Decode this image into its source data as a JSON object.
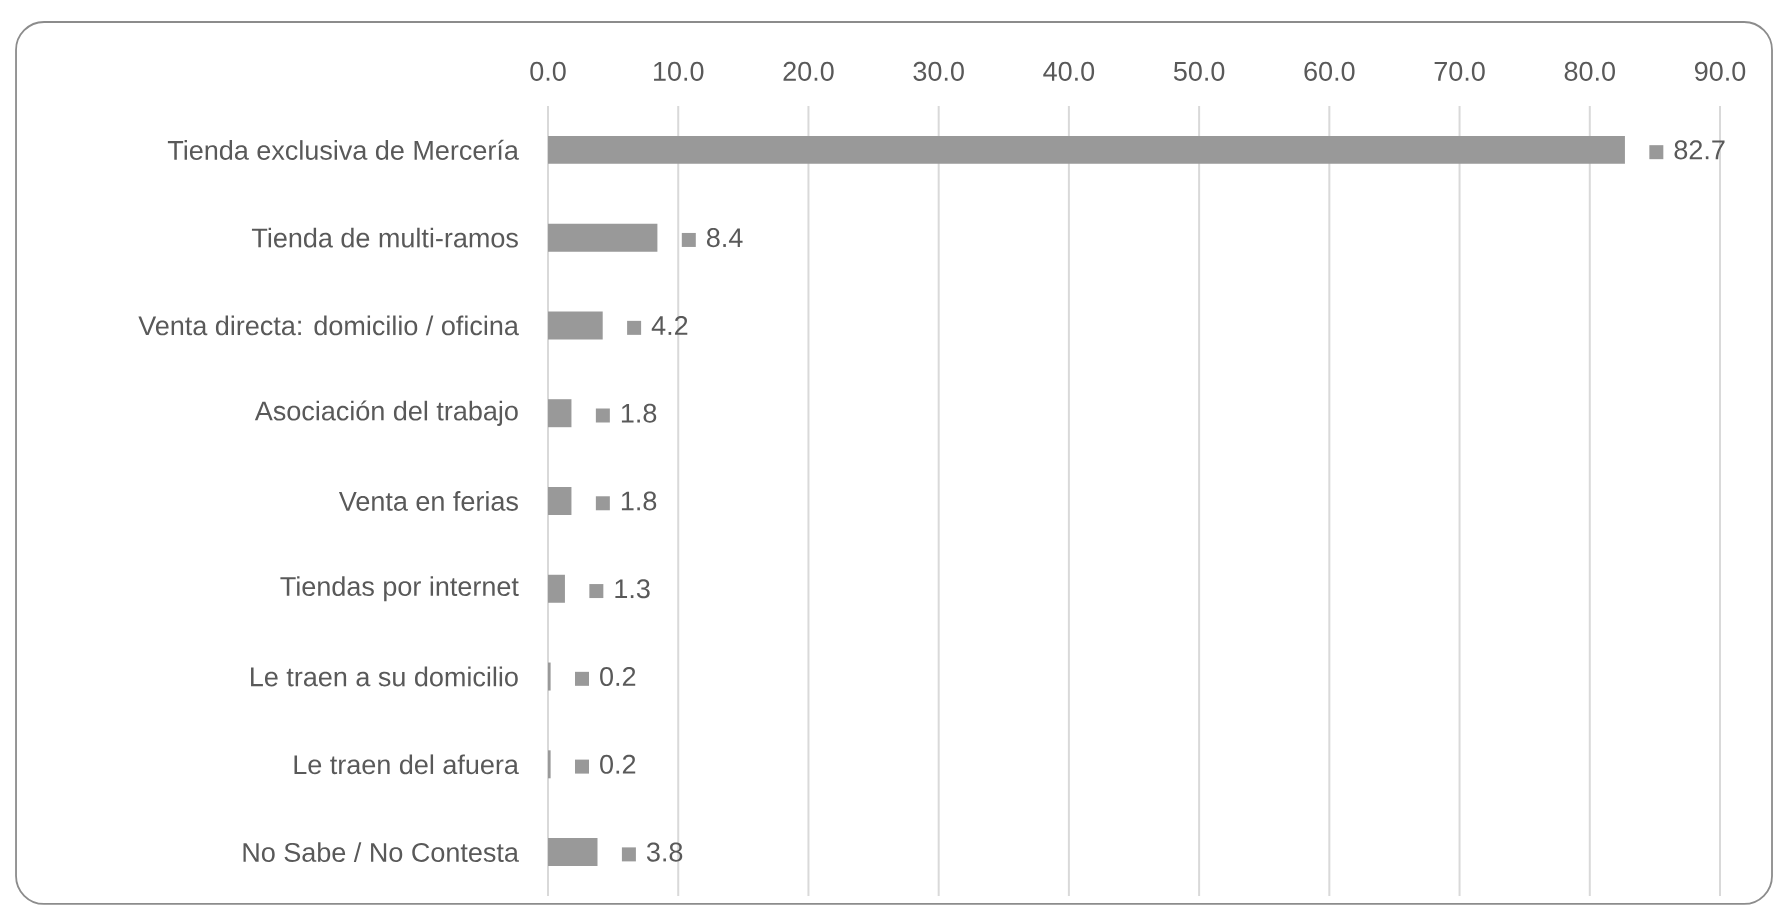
{
  "chart_data": {
    "type": "bar",
    "orientation": "horizontal",
    "categories": [
      "Tienda exclusiva de Mercería",
      "Tienda de multi-ramos",
      "Venta directa: domicilio / oficina",
      "Asociación del trabajo",
      "Venta en ferias",
      "Tiendas por internet",
      "Le traen a su domicilio",
      "Le traen del afuera",
      "No Sabe / No Contesta"
    ],
    "values": [
      82.7,
      8.4,
      4.2,
      1.8,
      1.8,
      1.3,
      0.2,
      0.2,
      3.8
    ],
    "color": "#999999",
    "xlim": [
      0,
      90
    ],
    "xticks": [
      {
        "value": 0,
        "label": "0.0"
      },
      {
        "value": 10,
        "label": "10.0"
      },
      {
        "value": 20,
        "label": "20.0"
      },
      {
        "value": 30,
        "label": "30.0"
      },
      {
        "value": 40,
        "label": "40.0"
      },
      {
        "value": 50,
        "label": "50.0"
      },
      {
        "value": 60,
        "label": "60.0"
      },
      {
        "value": 70,
        "label": "70.0"
      },
      {
        "value": 80,
        "label": "80.0"
      },
      {
        "value": 90,
        "label": "90.0"
      }
    ],
    "grid": "x",
    "data_labels": true
  }
}
